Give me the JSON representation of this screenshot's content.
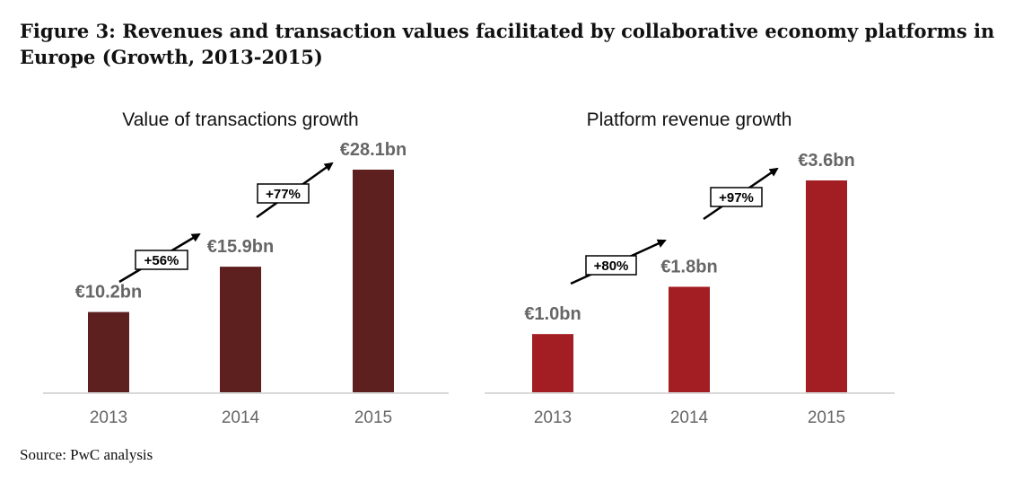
{
  "figure": {
    "title": "Figure 3: Revenues and transaction values facilitated by collaborative economy platforms in Europe (Growth, 2013-2015)",
    "source": "Source: PwC analysis"
  },
  "colors": {
    "transactions_bar": "#5e1f1f",
    "revenue_bar": "#a31e22",
    "label_gray": "#666666",
    "axis_line": "#d9d9d9"
  },
  "chart_data": [
    {
      "type": "bar",
      "title": "Value of transactions growth",
      "categories": [
        "2013",
        "2014",
        "2015"
      ],
      "values": [
        10.2,
        15.9,
        28.1
      ],
      "value_labels": [
        "€10.2bn",
        "€15.9bn",
        "€28.1bn"
      ],
      "growth_labels": [
        "+56%",
        "+77%"
      ],
      "unit": "€bn",
      "ylim": [
        0,
        28.1
      ],
      "grid": false,
      "legend": "none"
    },
    {
      "type": "bar",
      "title": "Platform revenue growth",
      "categories": [
        "2013",
        "2014",
        "2015"
      ],
      "values": [
        1.0,
        1.8,
        3.6
      ],
      "value_labels": [
        "€1.0bn",
        "€1.8bn",
        "€3.6bn"
      ],
      "growth_labels": [
        "+80%",
        "+97%"
      ],
      "unit": "€bn",
      "ylim": [
        0,
        3.6
      ],
      "grid": false,
      "legend": "none"
    }
  ]
}
